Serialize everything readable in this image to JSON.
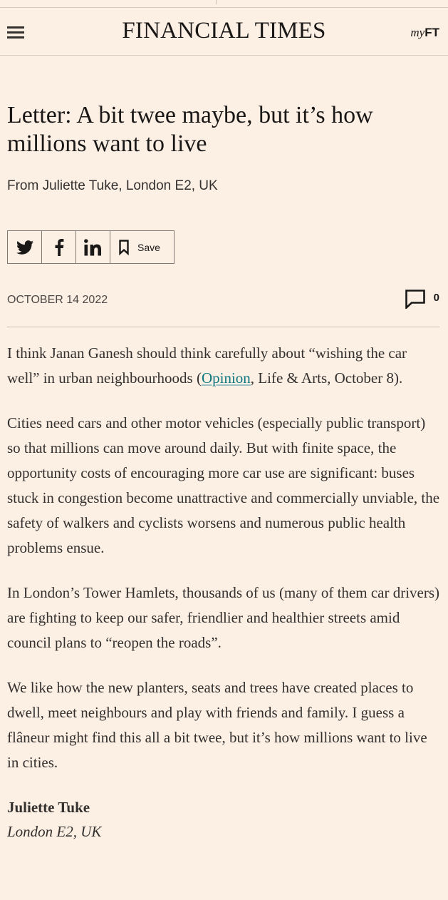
{
  "header": {
    "brand": "FINANCIAL TIMES",
    "myft_prefix": "my",
    "myft_suffix": "FT",
    "menu_icon": "hamburger-menu-icon"
  },
  "article": {
    "headline": "Letter: A bit twee maybe, but it’s how millions want to live",
    "byline": "From Juliette Tuke, London E2, UK",
    "share": {
      "icons": [
        "twitter-icon",
        "facebook-icon",
        "linkedin-icon",
        "bookmark-icon"
      ],
      "save_label": "Save"
    },
    "date": "OCTOBER 14 2022",
    "comment_count": "0",
    "paragraphs": {
      "p1_before": "I think Janan Ganesh should think carefully about “wishing the car well” in urban neighbourhoods (",
      "p1_link": "Opinion",
      "p1_after": ", Life & Arts, October 8).",
      "p2": "Cities need cars and other motor vehicles (especially public transport) so that millions can move around daily. But with finite space, the opportunity costs of encouraging more car use are significant: buses stuck in congestion become unattractive and commercially unviable, the safety of walkers and cyclists worsens and numerous public health problems ensue.",
      "p3": "In London’s Tower Hamlets, thousands of us (many of them car drivers) are fighting to keep our safer, friendlier and healthier streets amid council plans to “reopen the roads”.",
      "p4": "We like how the new planters, seats and trees have created places to dwell, meet neighbours and play with friends and family. I guess a flâneur might find this all a bit twee, but it’s how millions want to live in cities."
    },
    "signature": {
      "name": "Juliette Tuke",
      "location": "London E2, UK"
    }
  },
  "colors": {
    "background": "#fcefe4",
    "text": "#33302e",
    "link": "#0d7680",
    "rule": "#cbbfb5"
  }
}
